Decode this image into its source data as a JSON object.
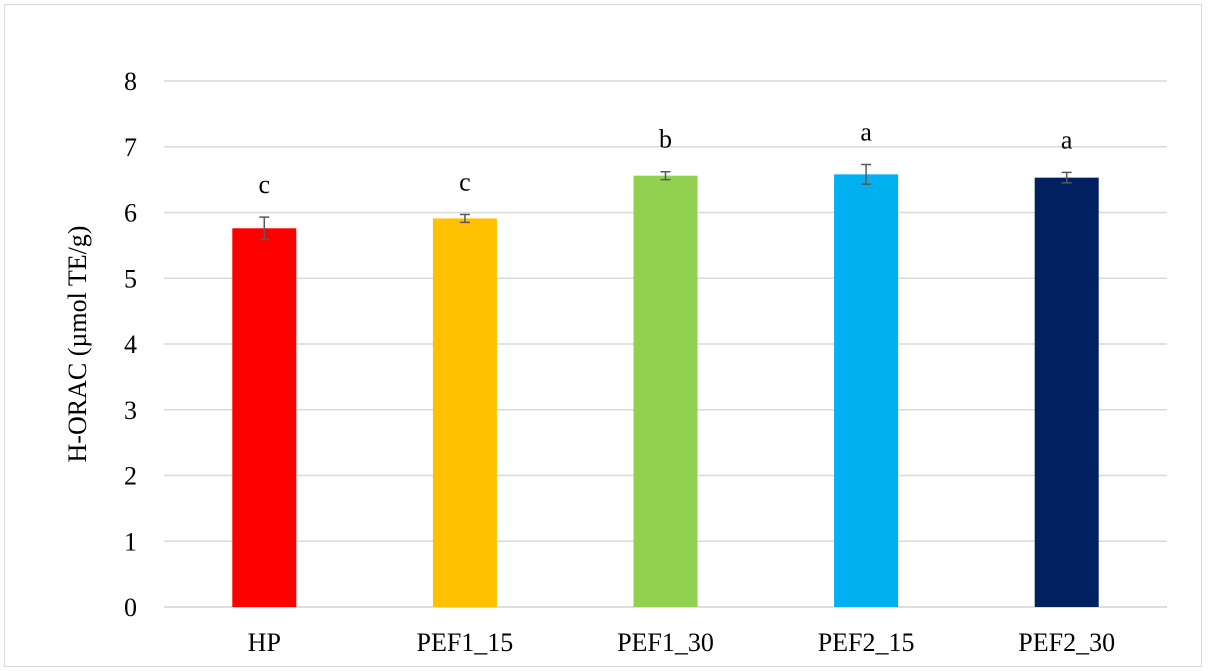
{
  "chart_data": {
    "type": "bar",
    "title": "",
    "xlabel": "",
    "ylabel": "H-ORAC (µmol TE/g)",
    "ylim": [
      0,
      8
    ],
    "yticks": [
      0,
      1,
      2,
      3,
      4,
      5,
      6,
      7,
      8
    ],
    "grid": true,
    "legend": "none",
    "categories": [
      "HP",
      "PEF1_15",
      "PEF1_30",
      "PEF2_15",
      "PEF2_30"
    ],
    "values": [
      5.76,
      5.91,
      6.56,
      6.58,
      6.53
    ],
    "errors": [
      0.17,
      0.06,
      0.06,
      0.15,
      0.08
    ],
    "significance_letters": [
      "c",
      "c",
      "b",
      "a",
      "a"
    ],
    "colors": [
      "#FF0000",
      "#FFC000",
      "#92D050",
      "#00B0F0",
      "#002060"
    ],
    "grid_color": "#d9d9d9",
    "error_bar_color": "#595959"
  }
}
